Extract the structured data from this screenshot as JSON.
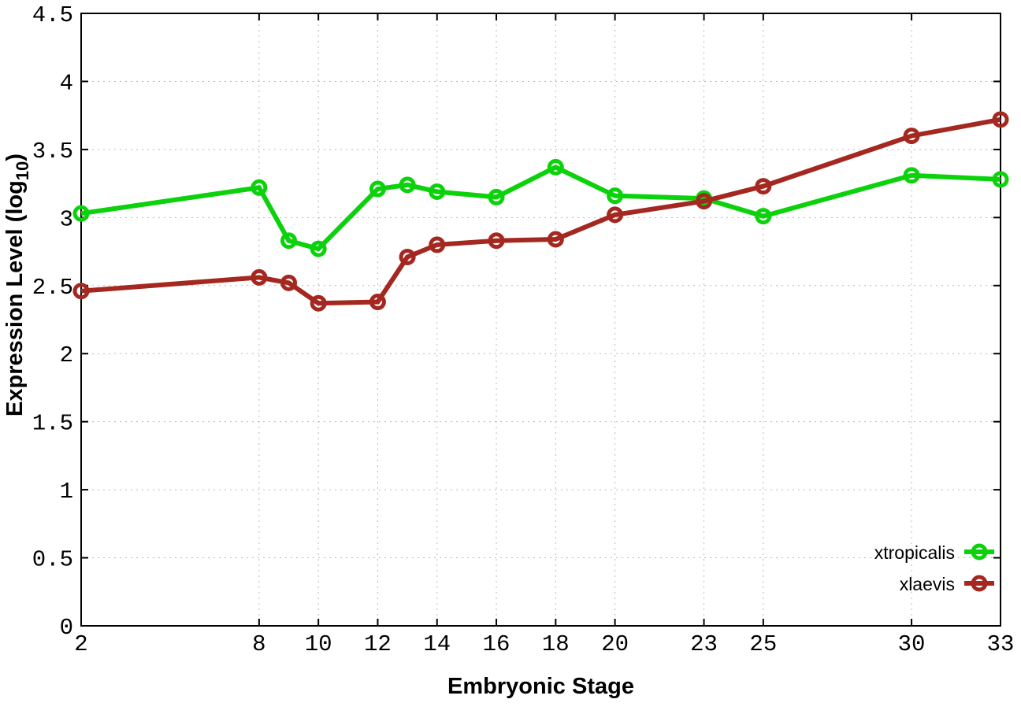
{
  "chart_data": {
    "type": "line",
    "x": [
      2,
      8,
      9,
      10,
      12,
      13,
      14,
      16,
      18,
      20,
      23,
      25,
      30,
      33
    ],
    "series": [
      {
        "name": "xtropicalis",
        "color": "#0bd20b",
        "marker": "open-circle",
        "values": [
          3.03,
          3.22,
          2.83,
          2.77,
          3.21,
          3.24,
          3.19,
          3.15,
          3.37,
          3.16,
          3.14,
          3.01,
          3.31,
          3.28
        ]
      },
      {
        "name": "xlaevis",
        "color": "#a42820",
        "marker": "open-circle",
        "values": [
          2.46,
          2.56,
          2.52,
          2.37,
          2.38,
          2.71,
          2.8,
          2.83,
          2.84,
          3.02,
          3.12,
          3.23,
          3.6,
          3.72
        ]
      }
    ],
    "xlabel": "Embryonic Stage",
    "ylabel": {
      "main": "Expression Level (log",
      "sub": "10",
      "suffix": ")"
    },
    "xlim": [
      2,
      33
    ],
    "ylim": [
      0,
      4.5
    ],
    "x_ticks": [
      2,
      8,
      10,
      12,
      14,
      16,
      18,
      20,
      23,
      25,
      30,
      33
    ],
    "x_tick_labels": [
      "2",
      "8",
      "10",
      "12",
      "14",
      "16",
      "18",
      "20",
      "23",
      "25",
      "30",
      "33"
    ],
    "y_ticks": [
      0,
      0.5,
      1,
      1.5,
      2,
      2.5,
      3,
      3.5,
      4,
      4.5
    ],
    "y_tick_labels": [
      "0",
      "0.5",
      "1",
      "1.5",
      "2",
      "2.5",
      "3",
      "3.5",
      "4",
      "4.5"
    ],
    "grid": true,
    "legend_position": "bottom-right"
  },
  "colors": {
    "background": "#ffffff",
    "grid": "#b9b9b9",
    "axis": "#000000",
    "text": "#000000"
  }
}
